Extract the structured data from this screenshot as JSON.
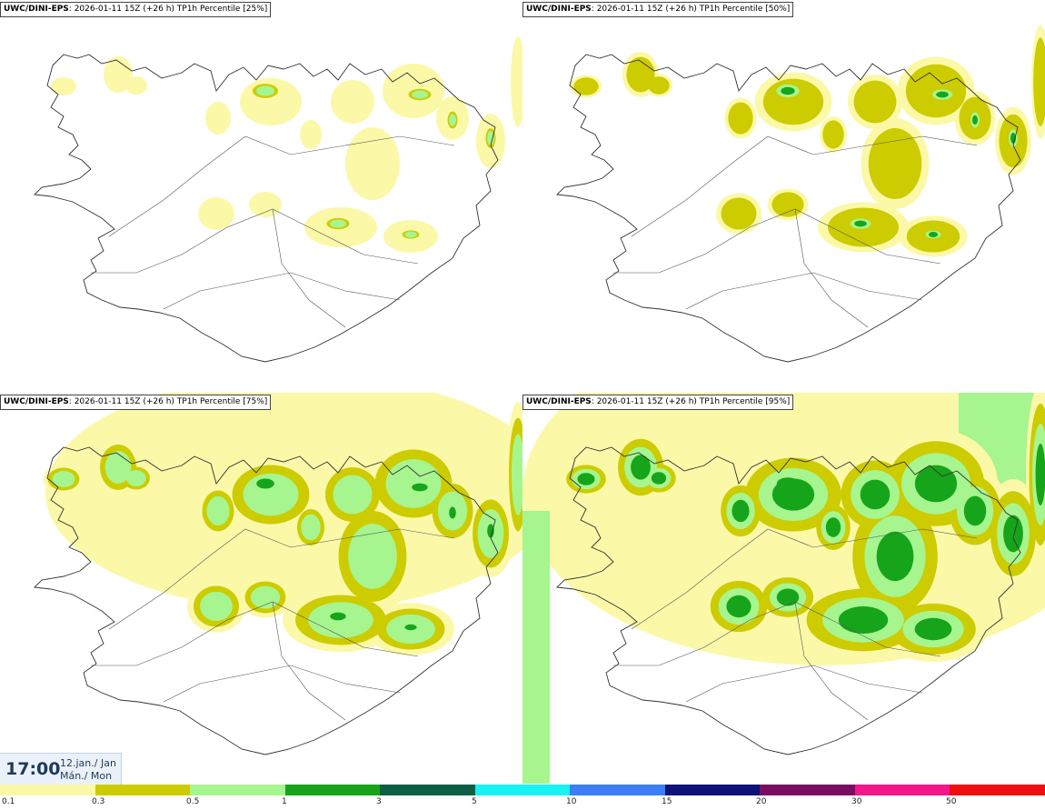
{
  "panels": [
    {
      "model": "UWC/DINI-EPS",
      "info": ": 2026-01-11 15Z (+26 h) TP1h Percentile [25%]",
      "level": 1
    },
    {
      "model": "UWC/DINI-EPS",
      "info": ": 2026-01-11 15Z (+26 h) TP1h Percentile [50%]",
      "level": 2
    },
    {
      "model": "UWC/DINI-EPS",
      "info": ": 2026-01-11 15Z (+26 h) TP1h Percentile [75%]",
      "level": 3
    },
    {
      "model": "UWC/DINI-EPS",
      "info": ": 2026-01-11 15Z (+26 h) TP1h Percentile [95%]",
      "level": 4
    }
  ],
  "time": {
    "clock": "17:00",
    "date": "12.jan./ Jan",
    "weekday": "Mán./ Mon"
  },
  "legend": {
    "labels": [
      "0.1",
      "0.3",
      "0.5",
      "1",
      "3",
      "5",
      "10",
      "15",
      "20",
      "30",
      "50"
    ],
    "colors": [
      "#fbf8a8",
      "#cccc00",
      "#a7f58f",
      "#16a51a",
      "#0d5e46",
      "#18f2f2",
      "#3b7ef5",
      "#0c1277",
      "#7a0d62",
      "#f5158b",
      "#f00d10"
    ]
  }
}
